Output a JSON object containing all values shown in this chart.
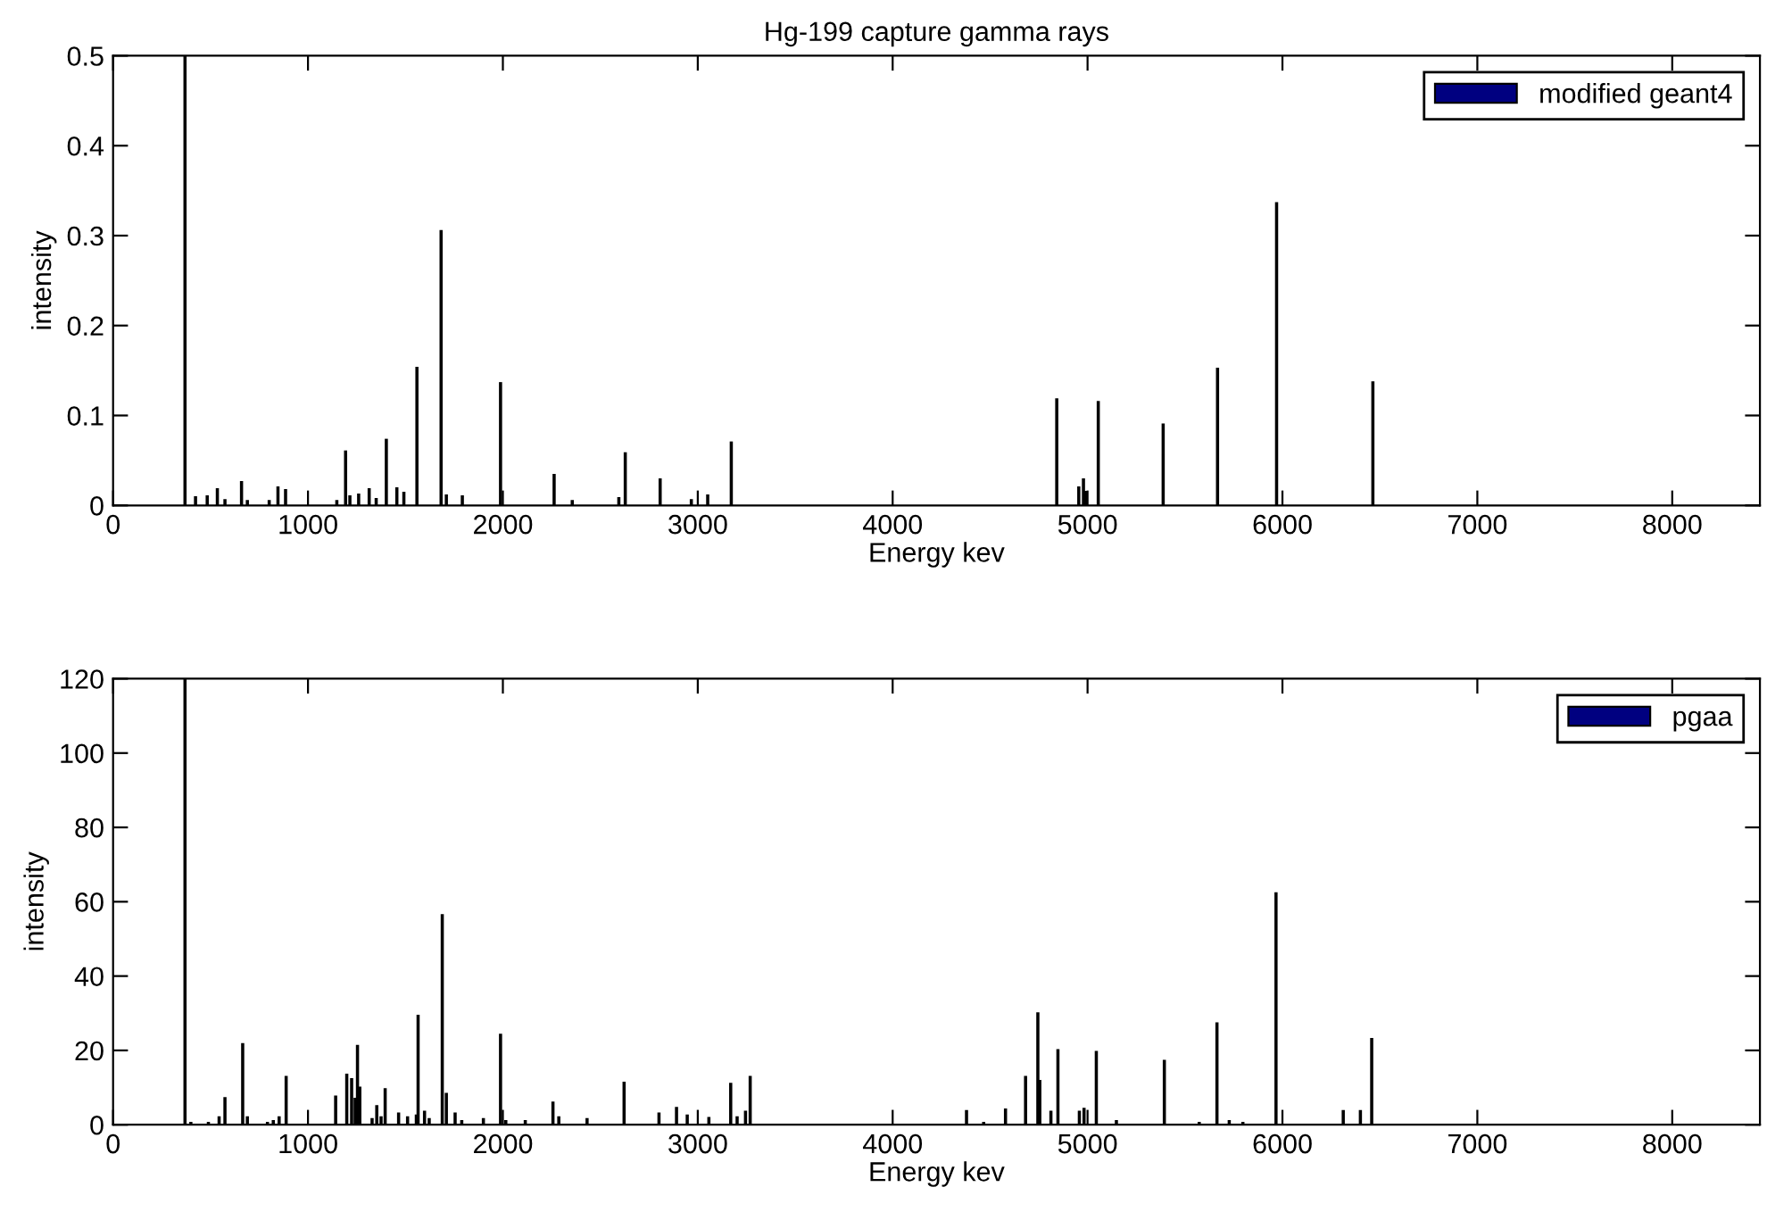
{
  "chart_data": [
    {
      "type": "bar",
      "title": "Hg-199 capture gamma rays",
      "xlabel": "Energy kev",
      "ylabel": "intensity",
      "x": [
        369,
        423,
        483,
        535,
        574,
        659,
        689,
        801,
        846,
        885,
        1148,
        1193,
        1215,
        1260,
        1314,
        1350,
        1402,
        1456,
        1492,
        1559,
        1683,
        1710,
        1792,
        1988,
        2263,
        2356,
        2595,
        2628,
        2807,
        2967,
        3051,
        3172,
        4842,
        4955,
        4979,
        4991,
        5055,
        5388,
        5667,
        5970,
        6464
      ],
      "series": [
        {
          "name": "modified geant4",
          "color": "#000080",
          "values": [
            0.5,
            0.009,
            0.01,
            0.018,
            0.006,
            0.026,
            0.005,
            0.005,
            0.02,
            0.017,
            0.005,
            0.06,
            0.01,
            0.012,
            0.018,
            0.007,
            0.073,
            0.019,
            0.014,
            0.153,
            0.305,
            0.011,
            0.01,
            0.136,
            0.034,
            0.005,
            0.008,
            0.058,
            0.029,
            0.006,
            0.011,
            0.07,
            0.118,
            0.02,
            0.029,
            0.015,
            0.115,
            0.09,
            0.152,
            0.336,
            0.137
          ]
        }
      ],
      "xlim": [
        0,
        8450
      ],
      "xticks": [
        0,
        1000,
        2000,
        3000,
        4000,
        5000,
        6000,
        7000,
        8000
      ],
      "ylim": [
        0,
        0.5
      ],
      "yticks": [
        0,
        0.1,
        0.2,
        0.3,
        0.4,
        0.5
      ],
      "legend": "top right",
      "grid": false
    },
    {
      "type": "bar",
      "xlabel": "Energy kev",
      "ylabel": "intensity",
      "x": [
        369,
        399,
        489,
        544,
        574,
        665,
        689,
        792,
        822,
        852,
        888,
        1142,
        1199,
        1224,
        1242,
        1254,
        1266,
        1329,
        1353,
        1375,
        1396,
        1465,
        1511,
        1556,
        1565,
        1598,
        1622,
        1689,
        1710,
        1755,
        1789,
        1900,
        1988,
        2015,
        2115,
        2257,
        2287,
        2432,
        2622,
        2801,
        2891,
        2946,
        3057,
        3169,
        3202,
        3245,
        3269,
        4379,
        4467,
        4579,
        4682,
        4745,
        4755,
        4812,
        4848,
        4958,
        4982,
        5045,
        5148,
        5394,
        5573,
        5664,
        5727,
        5797,
        5967,
        6312,
        6400,
        6458
      ],
      "series": [
        {
          "name": "pgaa",
          "color": "#000080",
          "values": [
            120,
            0.5,
            0.5,
            2,
            7.2,
            21.7,
            2,
            0.5,
            1,
            2,
            12.9,
            7.6,
            13.5,
            12.3,
            7,
            21.2,
            10,
            1.5,
            5,
            2,
            9.6,
            3,
            2,
            2.5,
            29.3,
            3.5,
            1.5,
            56.4,
            8.3,
            3,
            1,
            1.5,
            24.2,
            1,
            1,
            6,
            2,
            1.5,
            11.3,
            3,
            4.5,
            2.5,
            1.8,
            11,
            2,
            3.5,
            12.9,
            3.7,
            0.5,
            4.1,
            12.9,
            30,
            11.8,
            3.5,
            20.1,
            3.5,
            4.3,
            19.6,
            1,
            17.2,
            0.5,
            27.3,
            1,
            0.5,
            62.3,
            3.7,
            3.7,
            23.1
          ]
        }
      ],
      "xlim": [
        0,
        8450
      ],
      "xticks": [
        0,
        1000,
        2000,
        3000,
        4000,
        5000,
        6000,
        7000,
        8000
      ],
      "ylim": [
        0,
        120
      ],
      "yticks": [
        0,
        20,
        40,
        60,
        80,
        100,
        120
      ],
      "legend": "top right",
      "grid": false
    }
  ]
}
